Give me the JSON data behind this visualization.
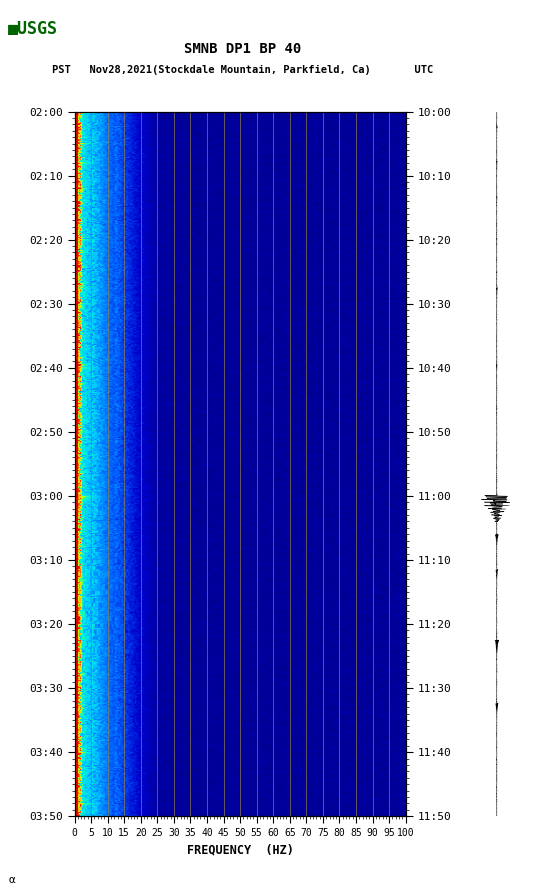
{
  "title_line1": "SMNB DP1 BP 40",
  "title_line2": "PST   Nov28,2021(Stockdale Mountain, Parkfield, Ca)       UTC",
  "xlabel": "FREQUENCY  (HZ)",
  "freq_min": 0,
  "freq_max": 100,
  "freq_ticks": [
    0,
    5,
    10,
    15,
    20,
    25,
    30,
    35,
    40,
    45,
    50,
    55,
    60,
    65,
    70,
    75,
    80,
    85,
    90,
    95,
    100
  ],
  "time_start_pst": "02:00",
  "time_end_pst": "03:50",
  "time_start_utc": "10:00",
  "time_end_utc": "11:50",
  "left_time_labels": [
    "02:00",
    "02:10",
    "02:20",
    "02:30",
    "02:40",
    "02:50",
    "03:00",
    "03:10",
    "03:20",
    "03:30",
    "03:40",
    "03:50"
  ],
  "right_time_labels": [
    "10:00",
    "10:10",
    "10:20",
    "10:30",
    "10:40",
    "10:50",
    "11:00",
    "11:10",
    "11:20",
    "11:30",
    "11:40",
    "11:50"
  ],
  "background_color": "#ffffff",
  "grid_color": "#8B7B4B",
  "fig_width": 5.52,
  "fig_height": 8.92
}
